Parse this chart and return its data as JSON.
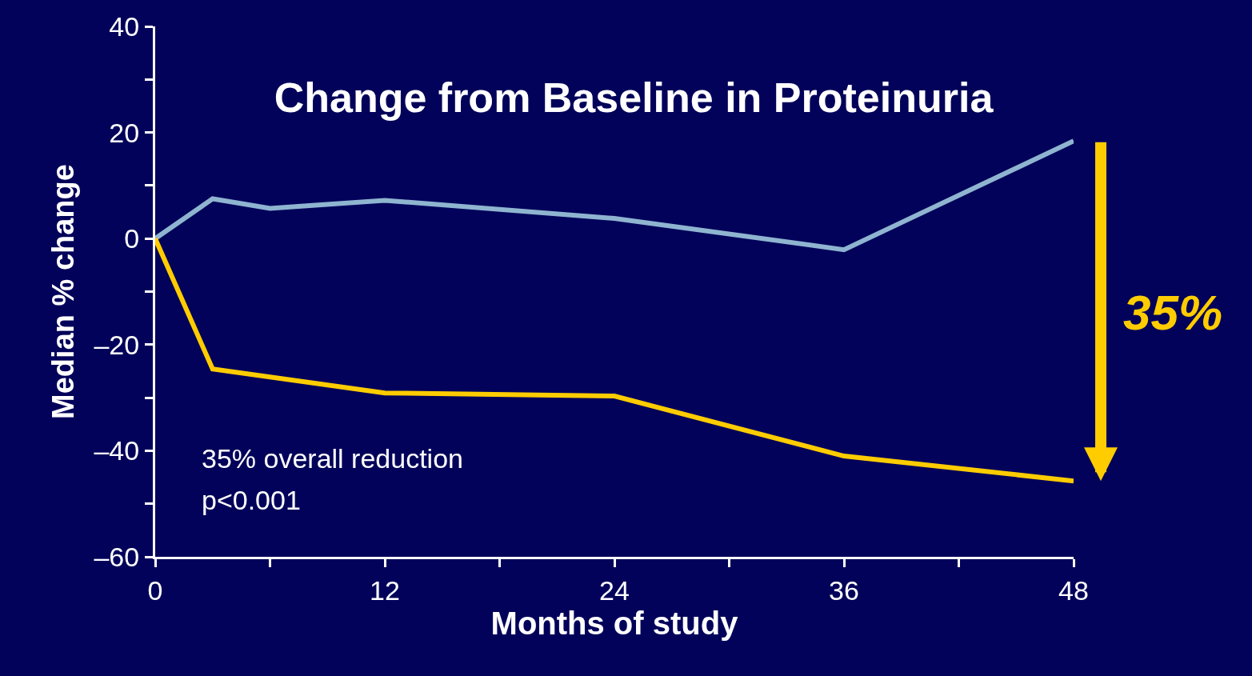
{
  "chart_data": {
    "type": "line",
    "title": "Change from Baseline in Proteinuria",
    "xlabel": "Months of study",
    "ylabel": "Median % change",
    "x": [
      0,
      3,
      6,
      12,
      24,
      36,
      48
    ],
    "series": [
      {
        "color": "#8fb4d0",
        "values": [
          0,
          7.5,
          5.7,
          7.2,
          3.8,
          -2.1,
          18.4
        ]
      },
      {
        "color": "#ffcc00",
        "x": [
          0,
          3,
          12,
          24,
          36,
          48
        ],
        "values": [
          0,
          -24.6,
          -29.1,
          -29.7,
          -41,
          -45.7
        ]
      }
    ],
    "xlim": [
      0,
      48
    ],
    "xticks": [
      0,
      {
        "value": 6,
        "label": null
      },
      12,
      {
        "value": 18,
        "label": null
      },
      24,
      {
        "value": 30,
        "label": null
      },
      36,
      {
        "value": 42,
        "label": null
      },
      48
    ],
    "ylim": [
      -60,
      40
    ],
    "yticks": [
      {
        "value": -60,
        "label": "–60"
      },
      {
        "value": -50,
        "label": null
      },
      {
        "value": -40,
        "label": "–40"
      },
      {
        "value": -30,
        "label": null
      },
      {
        "value": -20,
        "label": "–20"
      },
      {
        "value": -10,
        "label": null
      },
      0,
      {
        "value": 10,
        "label": null
      },
      20,
      {
        "value": 30,
        "label": null
      },
      40
    ],
    "annotations": [
      "35% overall reduction",
      "p<0.001",
      "35%"
    ],
    "grid": false,
    "legend": false,
    "marker": "none",
    "line_style": "solid"
  }
}
